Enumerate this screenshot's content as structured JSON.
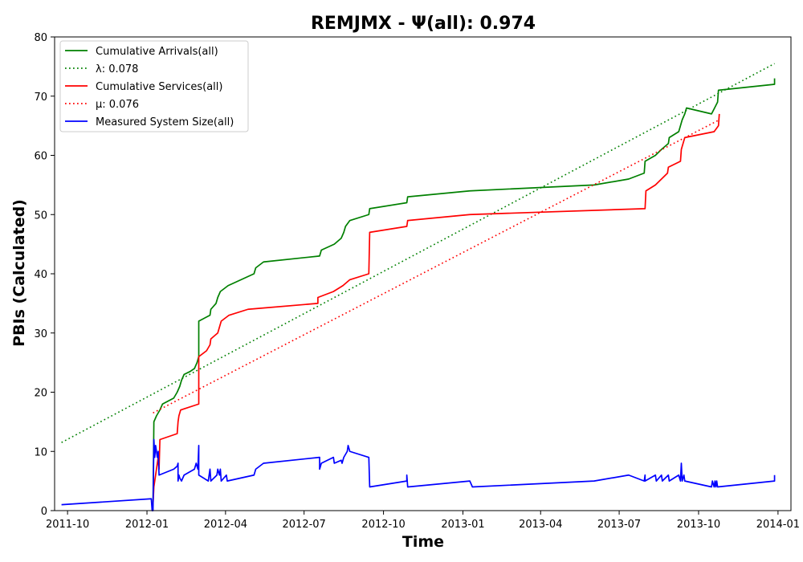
{
  "chart_data": {
    "type": "line",
    "title": "REMJMX -  Ψ(all): 0.974",
    "xlabel": "Time",
    "ylabel": "PBIs (Calculated)",
    "ylim": [
      0,
      80
    ],
    "xlim": [
      "2011-09-16",
      "2014-01-16"
    ],
    "grid": false,
    "legend_position": "top-left",
    "x_ticks": [
      "2011-10",
      "2012-01",
      "2012-04",
      "2012-07",
      "2012-10",
      "2013-01",
      "2013-04",
      "2013-07",
      "2013-10",
      "2014-01"
    ],
    "y_ticks": [
      0,
      10,
      20,
      30,
      40,
      50,
      60,
      70,
      80
    ],
    "series": [
      {
        "name": "Cumulative Arrivals(all)",
        "color": "#008000",
        "style": "solid",
        "points": [
          [
            "2012-01-08",
            1
          ],
          [
            "2012-01-09",
            15
          ],
          [
            "2012-01-12",
            16
          ],
          [
            "2012-01-16",
            17
          ],
          [
            "2012-01-19",
            18
          ],
          [
            "2012-02-01",
            19
          ],
          [
            "2012-02-05",
            20
          ],
          [
            "2012-02-08",
            21
          ],
          [
            "2012-02-10",
            22
          ],
          [
            "2012-02-13",
            23
          ],
          [
            "2012-02-20",
            23.5
          ],
          [
            "2012-02-25",
            24
          ],
          [
            "2012-02-28",
            25
          ],
          [
            "2012-03-01",
            26
          ],
          [
            "2012-03-01",
            32
          ],
          [
            "2012-03-14",
            33
          ],
          [
            "2012-03-15",
            34
          ],
          [
            "2012-03-21",
            35
          ],
          [
            "2012-03-23",
            36
          ],
          [
            "2012-03-26",
            37
          ],
          [
            "2012-04-04",
            38
          ],
          [
            "2012-05-04",
            40
          ],
          [
            "2012-05-06",
            41
          ],
          [
            "2012-05-15",
            42
          ],
          [
            "2012-07-19",
            43
          ],
          [
            "2012-07-21",
            44
          ],
          [
            "2012-08-05",
            45
          ],
          [
            "2012-08-13",
            46
          ],
          [
            "2012-08-16",
            47
          ],
          [
            "2012-08-18",
            48
          ],
          [
            "2012-08-23",
            49
          ],
          [
            "2012-09-14",
            50
          ],
          [
            "2012-09-15",
            51
          ],
          [
            "2012-10-28",
            52
          ],
          [
            "2012-10-29",
            53
          ],
          [
            "2013-01-09",
            54
          ],
          [
            "2013-06-02",
            55
          ],
          [
            "2013-07-12",
            56
          ],
          [
            "2013-07-30",
            57
          ],
          [
            "2013-07-31",
            59
          ],
          [
            "2013-08-12",
            60
          ],
          [
            "2013-08-19",
            61
          ],
          [
            "2013-08-27",
            62
          ],
          [
            "2013-08-28",
            63
          ],
          [
            "2013-09-08",
            64
          ],
          [
            "2013-09-10",
            65
          ],
          [
            "2013-09-12",
            66
          ],
          [
            "2013-09-15",
            67
          ],
          [
            "2013-09-17",
            68
          ],
          [
            "2013-10-16",
            67
          ],
          [
            "2013-10-23",
            69
          ],
          [
            "2013-10-24",
            71
          ],
          [
            "2013-12-28",
            72
          ],
          [
            "2013-12-28",
            73
          ]
        ]
      },
      {
        "name": "λ: 0.078",
        "color": "#008000",
        "style": "dotted",
        "points": [
          [
            "2011-09-24",
            11.5
          ],
          [
            "2013-12-28",
            75.5
          ]
        ]
      },
      {
        "name": "Cumulative Services(all)",
        "color": "#ff0000",
        "style": "solid",
        "points": [
          [
            "2012-01-08",
            1
          ],
          [
            "2012-01-09",
            4
          ],
          [
            "2012-01-14",
            9
          ],
          [
            "2012-01-15",
            7
          ],
          [
            "2012-01-16",
            12
          ],
          [
            "2012-02-05",
            13
          ],
          [
            "2012-02-06",
            15
          ],
          [
            "2012-02-07",
            16
          ],
          [
            "2012-02-09",
            17
          ],
          [
            "2012-03-01",
            18
          ],
          [
            "2012-03-01",
            26
          ],
          [
            "2012-03-10",
            27
          ],
          [
            "2012-03-14",
            28
          ],
          [
            "2012-03-15",
            29
          ],
          [
            "2012-03-23",
            30
          ],
          [
            "2012-03-27",
            32
          ],
          [
            "2012-04-05",
            33
          ],
          [
            "2012-04-27",
            34
          ],
          [
            "2012-07-17",
            35
          ],
          [
            "2012-07-17",
            36
          ],
          [
            "2012-08-04",
            37
          ],
          [
            "2012-08-15",
            38
          ],
          [
            "2012-08-23",
            39
          ],
          [
            "2012-09-14",
            40
          ],
          [
            "2012-09-15",
            47
          ],
          [
            "2012-10-28",
            48
          ],
          [
            "2012-10-29",
            49
          ],
          [
            "2013-01-09",
            50
          ],
          [
            "2013-07-31",
            51
          ],
          [
            "2013-08-01",
            54
          ],
          [
            "2013-08-12",
            55
          ],
          [
            "2013-08-19",
            56
          ],
          [
            "2013-08-26",
            57
          ],
          [
            "2013-08-27",
            58
          ],
          [
            "2013-09-10",
            59
          ],
          [
            "2013-09-11",
            61
          ],
          [
            "2013-09-15",
            63
          ],
          [
            "2013-10-19",
            64
          ],
          [
            "2013-10-24",
            65
          ],
          [
            "2013-10-25",
            67
          ]
        ]
      },
      {
        "name": "μ: 0.076",
        "color": "#ff0000",
        "style": "dotted",
        "points": [
          [
            "2012-01-08",
            16.5
          ],
          [
            "2013-10-25",
            66
          ]
        ]
      },
      {
        "name": "Measured System Size(all)",
        "color": "#0000ff",
        "style": "solid",
        "points": [
          [
            "2011-09-24",
            1
          ],
          [
            "2012-01-06",
            2
          ],
          [
            "2012-01-07",
            0
          ],
          [
            "2012-01-08",
            0
          ],
          [
            "2012-01-09",
            12
          ],
          [
            "2012-01-10",
            9
          ],
          [
            "2012-01-11",
            11
          ],
          [
            "2012-01-12",
            10
          ],
          [
            "2012-01-13",
            9
          ],
          [
            "2012-01-14",
            10
          ],
          [
            "2012-01-15",
            6
          ],
          [
            "2012-02-01",
            7
          ],
          [
            "2012-02-05",
            7.5
          ],
          [
            "2012-02-06",
            8
          ],
          [
            "2012-02-06",
            5
          ],
          [
            "2012-02-07",
            6
          ],
          [
            "2012-02-08",
            5.5
          ],
          [
            "2012-02-10",
            5
          ],
          [
            "2012-02-13",
            6
          ],
          [
            "2012-02-25",
            7
          ],
          [
            "2012-02-27",
            8
          ],
          [
            "2012-02-29",
            7
          ],
          [
            "2012-03-01",
            11
          ],
          [
            "2012-03-01",
            6
          ],
          [
            "2012-03-12",
            5
          ],
          [
            "2012-03-14",
            7
          ],
          [
            "2012-03-15",
            5
          ],
          [
            "2012-03-22",
            6
          ],
          [
            "2012-03-23",
            7
          ],
          [
            "2012-03-25",
            6
          ],
          [
            "2012-03-26",
            7
          ],
          [
            "2012-03-27",
            5
          ],
          [
            "2012-04-02",
            6
          ],
          [
            "2012-04-03",
            5
          ],
          [
            "2012-05-04",
            6
          ],
          [
            "2012-05-06",
            7
          ],
          [
            "2012-05-15",
            8
          ],
          [
            "2012-07-19",
            9
          ],
          [
            "2012-07-19",
            7
          ],
          [
            "2012-07-21",
            8
          ],
          [
            "2012-08-04",
            9
          ],
          [
            "2012-08-05",
            8
          ],
          [
            "2012-08-13",
            8.5
          ],
          [
            "2012-08-14",
            8
          ],
          [
            "2012-08-16",
            9
          ],
          [
            "2012-08-20",
            10
          ],
          [
            "2012-08-21",
            11
          ],
          [
            "2012-08-23",
            10
          ],
          [
            "2012-09-14",
            9
          ],
          [
            "2012-09-15",
            4
          ],
          [
            "2012-10-28",
            5
          ],
          [
            "2012-10-28",
            6
          ],
          [
            "2012-10-29",
            4
          ],
          [
            "2013-01-09",
            5
          ],
          [
            "2013-01-12",
            4
          ],
          [
            "2013-06-02",
            5
          ],
          [
            "2013-07-12",
            6
          ],
          [
            "2013-07-30",
            5
          ],
          [
            "2013-07-31",
            6
          ],
          [
            "2013-07-31",
            5
          ],
          [
            "2013-08-12",
            6
          ],
          [
            "2013-08-13",
            5
          ],
          [
            "2013-08-19",
            6
          ],
          [
            "2013-08-20",
            5
          ],
          [
            "2013-08-27",
            6
          ],
          [
            "2013-08-28",
            5
          ],
          [
            "2013-09-08",
            6
          ],
          [
            "2013-09-10",
            5
          ],
          [
            "2013-09-11",
            8
          ],
          [
            "2013-09-12",
            5
          ],
          [
            "2013-09-14",
            6
          ],
          [
            "2013-09-15",
            5
          ],
          [
            "2013-10-16",
            4
          ],
          [
            "2013-10-17",
            5
          ],
          [
            "2013-10-19",
            4
          ],
          [
            "2013-10-20",
            5
          ],
          [
            "2013-10-21",
            4
          ],
          [
            "2013-10-22",
            5
          ],
          [
            "2013-10-23",
            4
          ],
          [
            "2013-12-28",
            5
          ],
          [
            "2013-12-28",
            6
          ]
        ]
      }
    ]
  }
}
